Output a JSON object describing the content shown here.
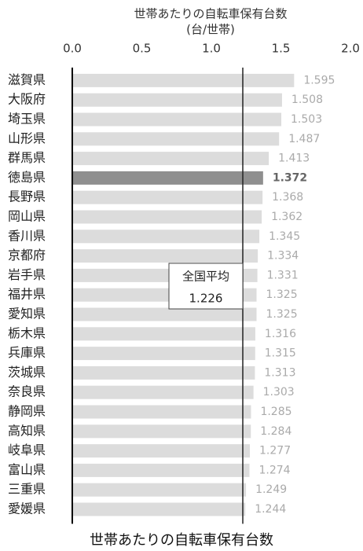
{
  "chart_data": {
    "type": "barh",
    "title": "世帯あたりの自転車保有台数",
    "x_label": "(台/世帯)",
    "caption": "世帯あたりの自転車保有台数",
    "categories": [
      "滋賀県",
      "大阪府",
      "埼玉県",
      "山形県",
      "群馬県",
      "徳島県",
      "長野県",
      "岡山県",
      "香川県",
      "京都府",
      "岩手県",
      "福井県",
      "愛知県",
      "栃木県",
      "兵庫県",
      "茨城県",
      "奈良県",
      "静岡県",
      "高知県",
      "岐阜県",
      "富山県",
      "三重県",
      "愛媛県"
    ],
    "values": [
      1.595,
      1.508,
      1.503,
      1.487,
      1.413,
      1.372,
      1.368,
      1.362,
      1.345,
      1.334,
      1.331,
      1.325,
      1.325,
      1.316,
      1.315,
      1.313,
      1.303,
      1.285,
      1.284,
      1.277,
      1.274,
      1.249,
      1.244
    ],
    "colors": [
      "#dcdcdc",
      "#dcdcdc",
      "#dcdcdc",
      "#dcdcdc",
      "#dcdcdc",
      "#8f8f8f",
      "#dcdcdc",
      "#dcdcdc",
      "#dcdcdc",
      "#dcdcdc",
      "#dcdcdc",
      "#dcdcdc",
      "#dcdcdc",
      "#dcdcdc",
      "#dcdcdc",
      "#dcdcdc",
      "#dcdcdc",
      "#dcdcdc",
      "#dcdcdc",
      "#dcdcdc",
      "#dcdcdc",
      "#dcdcdc",
      "#dcdcdc"
    ],
    "xlim": [
      0,
      2
    ],
    "xticks": [
      {
        "value": 0,
        "label": "0.0"
      },
      0.5,
      {
        "value": 1,
        "label": "1.0"
      },
      1.5,
      {
        "value": 2,
        "label": "2.0"
      }
    ],
    "reference_line": {
      "label": "全国平均",
      "value": 1.226
    }
  }
}
